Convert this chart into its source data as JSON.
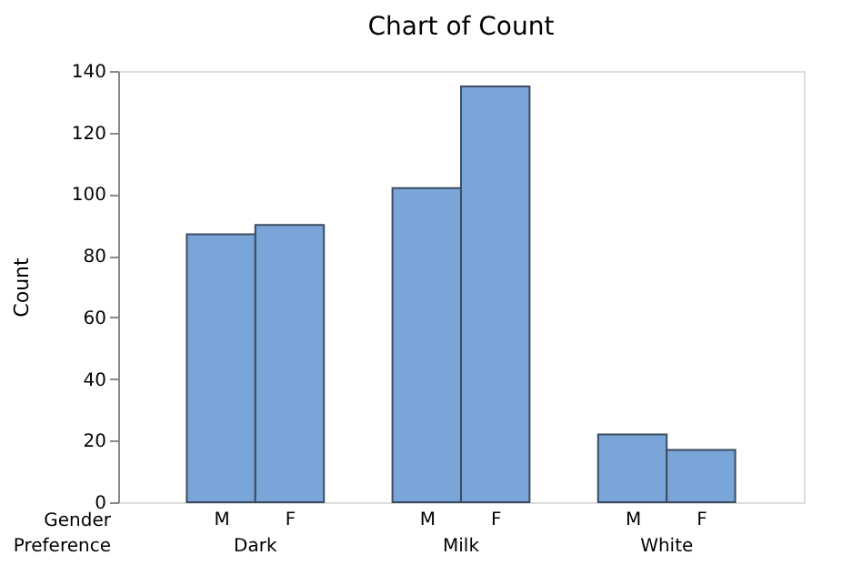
{
  "chart_data": {
    "type": "bar",
    "title": "Chart of Count",
    "ylabel": "Count",
    "categories": [
      "M",
      "F",
      null,
      "M",
      "F",
      null,
      "M",
      "F"
    ],
    "values": [
      87,
      90,
      null,
      102,
      135,
      null,
      22,
      17
    ],
    "color": "#7aa5d8",
    "ylim": [
      0,
      140
    ],
    "yticks": [
      0,
      20,
      40,
      60,
      80,
      100,
      120,
      140
    ],
    "grid": false,
    "annotations": [
      "Gender",
      "Preference",
      "Dark",
      "Milk",
      "White"
    ]
  }
}
